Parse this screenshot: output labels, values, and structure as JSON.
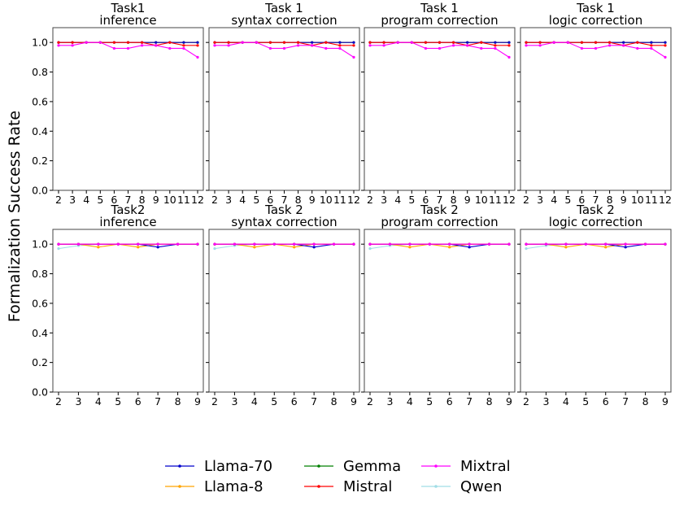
{
  "ylabel": "Formalization Success Rate",
  "legend_position": "bottom-center",
  "series_styles": [
    {
      "name": "Llama-70",
      "color": "#0000cc"
    },
    {
      "name": "Llama-8",
      "color": "#ffa500"
    },
    {
      "name": "Gemma",
      "color": "#008000"
    },
    {
      "name": "Mistral",
      "color": "#ff0000"
    },
    {
      "name": "Mixtral",
      "color": "#ff00ff"
    },
    {
      "name": "Qwen",
      "color": "#a0dde6"
    }
  ],
  "legend_order": [
    "Llama-70",
    "Llama-8",
    "Gemma",
    "Mistral",
    "Mixtral",
    "Qwen"
  ],
  "chart_data": [
    {
      "type": "line",
      "title_line1": "Task1",
      "title_line2": "inference",
      "x": [
        2,
        3,
        4,
        5,
        6,
        7,
        8,
        9,
        10,
        11,
        12
      ],
      "ylim": [
        0,
        1.1
      ],
      "yticks": [
        "0.0",
        "0.2",
        "0.4",
        "0.6",
        "0.8",
        "1.0"
      ],
      "show_yticks": true,
      "series": [
        {
          "name": "Llama-70",
          "values": [
            1,
            1,
            1,
            1,
            1,
            1,
            1,
            1,
            1,
            1,
            1
          ]
        },
        {
          "name": "Llama-8",
          "values": [
            1,
            1,
            1,
            1,
            1,
            1,
            1,
            1,
            1,
            1,
            1
          ]
        },
        {
          "name": "Gemma",
          "values": [
            1,
            1,
            1,
            1,
            1,
            1,
            1,
            1,
            1,
            1,
            1
          ]
        },
        {
          "name": "Mistral",
          "values": [
            1,
            1,
            1,
            1,
            1,
            1,
            1,
            0.98,
            1,
            0.98,
            0.98
          ]
        },
        {
          "name": "Mixtral",
          "values": [
            0.98,
            0.98,
            1,
            1,
            0.96,
            0.96,
            0.98,
            0.98,
            0.96,
            0.96,
            0.9
          ]
        },
        {
          "name": "Qwen",
          "values": [
            1,
            1,
            1,
            1,
            1,
            1,
            1,
            1,
            1,
            1,
            1
          ]
        }
      ]
    },
    {
      "type": "line",
      "title_line1": "Task 1",
      "title_line2": "syntax correction",
      "x": [
        2,
        3,
        4,
        5,
        6,
        7,
        8,
        9,
        10,
        11,
        12
      ],
      "ylim": [
        0,
        1.1
      ],
      "yticks": [
        "0.0",
        "0.2",
        "0.4",
        "0.6",
        "0.8",
        "1.0"
      ],
      "show_yticks": false,
      "series": [
        {
          "name": "Llama-70",
          "values": [
            1,
            1,
            1,
            1,
            1,
            1,
            1,
            1,
            1,
            1,
            1
          ]
        },
        {
          "name": "Llama-8",
          "values": [
            1,
            1,
            1,
            1,
            1,
            1,
            1,
            1,
            1,
            1,
            1
          ]
        },
        {
          "name": "Gemma",
          "values": [
            1,
            1,
            1,
            1,
            1,
            1,
            1,
            1,
            1,
            1,
            1
          ]
        },
        {
          "name": "Mistral",
          "values": [
            1,
            1,
            1,
            1,
            1,
            1,
            1,
            0.98,
            1,
            0.98,
            0.98
          ]
        },
        {
          "name": "Mixtral",
          "values": [
            0.98,
            0.98,
            1,
            1,
            0.96,
            0.96,
            0.98,
            0.98,
            0.96,
            0.96,
            0.9
          ]
        },
        {
          "name": "Qwen",
          "values": [
            1,
            1,
            1,
            1,
            1,
            1,
            1,
            1,
            1,
            1,
            1
          ]
        }
      ]
    },
    {
      "type": "line",
      "title_line1": "Task 1",
      "title_line2": "program correction",
      "x": [
        2,
        3,
        4,
        5,
        6,
        7,
        8,
        9,
        10,
        11,
        12
      ],
      "ylim": [
        0,
        1.1
      ],
      "yticks": [
        "0.0",
        "0.2",
        "0.4",
        "0.6",
        "0.8",
        "1.0"
      ],
      "show_yticks": false,
      "series": [
        {
          "name": "Llama-70",
          "values": [
            1,
            1,
            1,
            1,
            1,
            1,
            1,
            1,
            1,
            1,
            1
          ]
        },
        {
          "name": "Llama-8",
          "values": [
            1,
            1,
            1,
            1,
            1,
            1,
            1,
            1,
            1,
            1,
            1
          ]
        },
        {
          "name": "Gemma",
          "values": [
            1,
            1,
            1,
            1,
            1,
            1,
            1,
            1,
            1,
            1,
            1
          ]
        },
        {
          "name": "Mistral",
          "values": [
            1,
            1,
            1,
            1,
            1,
            1,
            1,
            0.98,
            1,
            0.98,
            0.98
          ]
        },
        {
          "name": "Mixtral",
          "values": [
            0.98,
            0.98,
            1,
            1,
            0.96,
            0.96,
            0.98,
            0.98,
            0.96,
            0.96,
            0.9
          ]
        },
        {
          "name": "Qwen",
          "values": [
            1,
            1,
            1,
            1,
            1,
            1,
            1,
            1,
            1,
            1,
            1
          ]
        }
      ]
    },
    {
      "type": "line",
      "title_line1": "Task 1",
      "title_line2": "logic correction",
      "x": [
        2,
        3,
        4,
        5,
        6,
        7,
        8,
        9,
        10,
        11,
        12
      ],
      "ylim": [
        0,
        1.1
      ],
      "yticks": [
        "0.0",
        "0.2",
        "0.4",
        "0.6",
        "0.8",
        "1.0"
      ],
      "show_yticks": false,
      "series": [
        {
          "name": "Llama-70",
          "values": [
            1,
            1,
            1,
            1,
            1,
            1,
            1,
            1,
            1,
            1,
            1
          ]
        },
        {
          "name": "Llama-8",
          "values": [
            1,
            1,
            1,
            1,
            1,
            1,
            1,
            1,
            1,
            1,
            1
          ]
        },
        {
          "name": "Gemma",
          "values": [
            1,
            1,
            1,
            1,
            1,
            1,
            1,
            1,
            1,
            1,
            1
          ]
        },
        {
          "name": "Mistral",
          "values": [
            1,
            1,
            1,
            1,
            1,
            1,
            1,
            0.98,
            1,
            0.98,
            0.98
          ]
        },
        {
          "name": "Mixtral",
          "values": [
            0.98,
            0.98,
            1,
            1,
            0.96,
            0.96,
            0.98,
            0.98,
            0.96,
            0.96,
            0.9
          ]
        },
        {
          "name": "Qwen",
          "values": [
            1,
            1,
            1,
            1,
            1,
            1,
            1,
            1,
            1,
            1,
            1
          ]
        }
      ]
    },
    {
      "type": "line",
      "title_line1": "Task2",
      "title_line2": "inference",
      "x": [
        2,
        3,
        4,
        5,
        6,
        7,
        8,
        9
      ],
      "ylim": [
        0,
        1.1
      ],
      "yticks": [
        "0.0",
        "0.2",
        "0.4",
        "0.6",
        "0.8",
        "1.0"
      ],
      "show_yticks": true,
      "series": [
        {
          "name": "Llama-70",
          "values": [
            1,
            1,
            1,
            1,
            1,
            0.98,
            1,
            1
          ]
        },
        {
          "name": "Llama-8",
          "values": [
            1,
            1,
            0.98,
            1,
            0.98,
            1,
            1,
            1
          ]
        },
        {
          "name": "Gemma",
          "values": [
            1,
            1,
            1,
            1,
            1,
            1,
            1,
            1
          ]
        },
        {
          "name": "Mistral",
          "values": [
            1,
            1,
            1,
            1,
            1,
            1,
            1,
            1
          ]
        },
        {
          "name": "Mixtral",
          "values": [
            1,
            1,
            1,
            1,
            1,
            1,
            1,
            1
          ]
        },
        {
          "name": "Qwen",
          "values": [
            0.97,
            0.99,
            1,
            1,
            1,
            1,
            1,
            1
          ]
        }
      ]
    },
    {
      "type": "line",
      "title_line1": "Task 2",
      "title_line2": "syntax correction",
      "x": [
        2,
        3,
        4,
        5,
        6,
        7,
        8,
        9
      ],
      "ylim": [
        0,
        1.1
      ],
      "yticks": [
        "0.0",
        "0.2",
        "0.4",
        "0.6",
        "0.8",
        "1.0"
      ],
      "show_yticks": false,
      "series": [
        {
          "name": "Llama-70",
          "values": [
            1,
            1,
            1,
            1,
            1,
            0.98,
            1,
            1
          ]
        },
        {
          "name": "Llama-8",
          "values": [
            1,
            1,
            0.98,
            1,
            0.98,
            1,
            1,
            1
          ]
        },
        {
          "name": "Gemma",
          "values": [
            1,
            1,
            1,
            1,
            1,
            1,
            1,
            1
          ]
        },
        {
          "name": "Mistral",
          "values": [
            1,
            1,
            1,
            1,
            1,
            1,
            1,
            1
          ]
        },
        {
          "name": "Mixtral",
          "values": [
            1,
            1,
            1,
            1,
            1,
            1,
            1,
            1
          ]
        },
        {
          "name": "Qwen",
          "values": [
            0.97,
            0.99,
            1,
            1,
            1,
            1,
            1,
            1
          ]
        }
      ]
    },
    {
      "type": "line",
      "title_line1": "Task 2",
      "title_line2": "program correction",
      "x": [
        2,
        3,
        4,
        5,
        6,
        7,
        8,
        9
      ],
      "ylim": [
        0,
        1.1
      ],
      "yticks": [
        "0.0",
        "0.2",
        "0.4",
        "0.6",
        "0.8",
        "1.0"
      ],
      "show_yticks": false,
      "series": [
        {
          "name": "Llama-70",
          "values": [
            1,
            1,
            1,
            1,
            1,
            0.98,
            1,
            1
          ]
        },
        {
          "name": "Llama-8",
          "values": [
            1,
            1,
            0.98,
            1,
            0.98,
            1,
            1,
            1
          ]
        },
        {
          "name": "Gemma",
          "values": [
            1,
            1,
            1,
            1,
            1,
            1,
            1,
            1
          ]
        },
        {
          "name": "Mistral",
          "values": [
            1,
            1,
            1,
            1,
            1,
            1,
            1,
            1
          ]
        },
        {
          "name": "Mixtral",
          "values": [
            1,
            1,
            1,
            1,
            1,
            1,
            1,
            1
          ]
        },
        {
          "name": "Qwen",
          "values": [
            0.97,
            0.99,
            1,
            1,
            1,
            1,
            1,
            1
          ]
        }
      ]
    },
    {
      "type": "line",
      "title_line1": "Task 2",
      "title_line2": "logic correction",
      "x": [
        2,
        3,
        4,
        5,
        6,
        7,
        8,
        9
      ],
      "ylim": [
        0,
        1.1
      ],
      "yticks": [
        "0.0",
        "0.2",
        "0.4",
        "0.6",
        "0.8",
        "1.0"
      ],
      "show_yticks": false,
      "series": [
        {
          "name": "Llama-70",
          "values": [
            1,
            1,
            1,
            1,
            1,
            0.98,
            1,
            1
          ]
        },
        {
          "name": "Llama-8",
          "values": [
            1,
            1,
            0.98,
            1,
            0.98,
            1,
            1,
            1
          ]
        },
        {
          "name": "Gemma",
          "values": [
            1,
            1,
            1,
            1,
            1,
            1,
            1,
            1
          ]
        },
        {
          "name": "Mistral",
          "values": [
            1,
            1,
            1,
            1,
            1,
            1,
            1,
            1
          ]
        },
        {
          "name": "Mixtral",
          "values": [
            1,
            1,
            1,
            1,
            1,
            1,
            1,
            1
          ]
        },
        {
          "name": "Qwen",
          "values": [
            0.97,
            0.99,
            1,
            1,
            1,
            1,
            1,
            1
          ]
        }
      ]
    }
  ]
}
